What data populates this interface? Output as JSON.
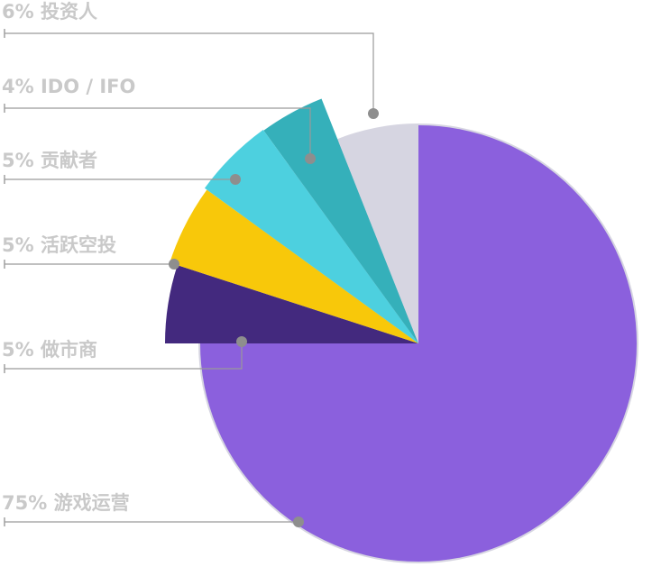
{
  "chart_data": {
    "type": "pie",
    "title": "",
    "unit": "%",
    "slices": [
      {
        "label": "游戏运营",
        "value": 75,
        "color": "#8b60dd",
        "text": "75% 游戏运营"
      },
      {
        "label": "做市商",
        "value": 5,
        "color": "#43297e",
        "text": "5% 做市商"
      },
      {
        "label": "活跃空投",
        "value": 5,
        "color": "#f8c80a",
        "text": "5% 活跃空投"
      },
      {
        "label": "贡献者",
        "value": 5,
        "color": "#4dd0df",
        "text": "5% 贡献者"
      },
      {
        "label": "IDO / IFO",
        "value": 4,
        "color": "#35b0ba",
        "text": "4% IDO / IFO"
      },
      {
        "label": "投资人",
        "value": 6,
        "color": "#d6d5e1",
        "text": "6% 投资人"
      }
    ],
    "ring_color": "#d6d5e1",
    "legend": "left, with leader lines"
  }
}
